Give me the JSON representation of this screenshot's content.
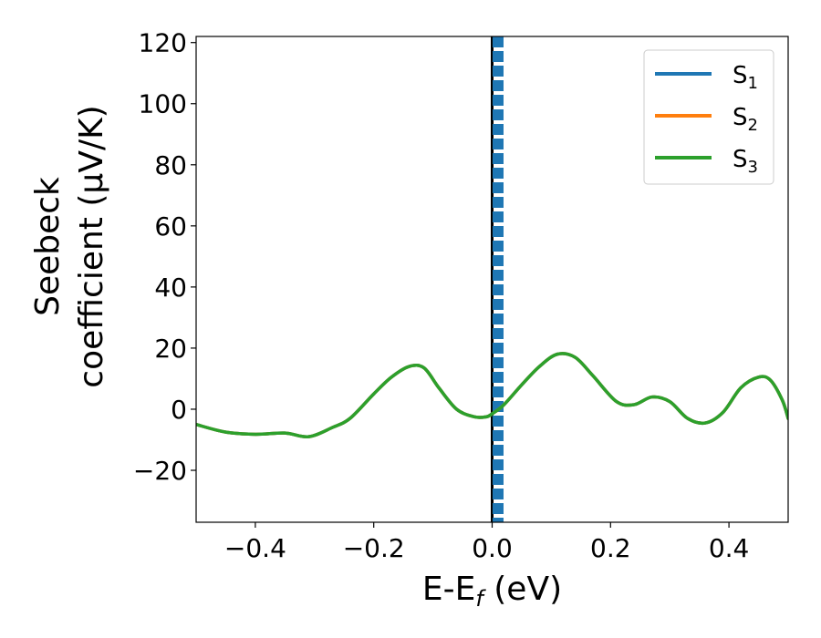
{
  "chart_data": {
    "type": "line",
    "xlabel": "E-E",
    "xlabel_sub": "f",
    "xlabel_unit": " (eV)",
    "ylabel_line1": "Seebeck",
    "ylabel_line2": "coefficient  (μV/K)",
    "xlim": [
      -0.5,
      0.5
    ],
    "ylim": [
      -37,
      122
    ],
    "xticks": [
      -0.4,
      -0.2,
      0.0,
      0.2,
      0.4
    ],
    "xtick_labels": [
      "−0.4",
      "−0.2",
      "0.0",
      "0.2",
      "0.4"
    ],
    "yticks": [
      -20,
      0,
      20,
      40,
      60,
      80,
      100,
      120
    ],
    "ytick_labels": [
      "−20",
      "0",
      "20",
      "40",
      "60",
      "80",
      "100",
      "120"
    ],
    "grid": false,
    "legend_position": "top-right",
    "vertical_lines": [
      {
        "x": 0.0,
        "color": "#000000",
        "style": "solid"
      },
      {
        "x": 0.01,
        "color": "#1f77b4",
        "style": "dashed"
      }
    ],
    "series": [
      {
        "name": "S",
        "name_sub": "1",
        "color": "#1f77b4",
        "x": [
          -0.5,
          -0.45,
          -0.4,
          -0.35,
          -0.31,
          -0.27,
          -0.24,
          -0.2,
          -0.17,
          -0.14,
          -0.115,
          -0.09,
          -0.06,
          -0.03,
          -0.01,
          0.0,
          0.02,
          0.05,
          0.08,
          0.11,
          0.14,
          0.17,
          0.21,
          0.24,
          0.27,
          0.3,
          0.33,
          0.36,
          0.39,
          0.42,
          0.45,
          0.47,
          0.49,
          0.5
        ],
        "values": [
          -5,
          -7.5,
          -8.2,
          -7.8,
          -9,
          -6,
          -3,
          5,
          10.5,
          14,
          13.5,
          7,
          0,
          -2.5,
          -2.5,
          -1.5,
          1.5,
          8,
          14,
          18,
          17,
          11,
          2.5,
          1.5,
          4,
          2.5,
          -3,
          -4.5,
          -1,
          7,
          10.5,
          9.5,
          3,
          -3
        ]
      },
      {
        "name": "S",
        "name_sub": "2",
        "color": "#ff7f0e",
        "x": [
          -0.5,
          -0.45,
          -0.4,
          -0.35,
          -0.31,
          -0.27,
          -0.24,
          -0.2,
          -0.17,
          -0.14,
          -0.115,
          -0.09,
          -0.06,
          -0.03,
          -0.01,
          0.0,
          0.02,
          0.05,
          0.08,
          0.11,
          0.14,
          0.17,
          0.21,
          0.24,
          0.27,
          0.3,
          0.33,
          0.36,
          0.39,
          0.42,
          0.45,
          0.47,
          0.49,
          0.5
        ],
        "values": [
          -5,
          -7.5,
          -8.2,
          -7.8,
          -9,
          -6,
          -3,
          5,
          10.5,
          14,
          13.5,
          7,
          0,
          -2.5,
          -2.5,
          -1.5,
          1.5,
          8,
          14,
          18,
          17,
          11,
          2.5,
          1.5,
          4,
          2.5,
          -3,
          -4.5,
          -1,
          7,
          10.5,
          9.5,
          3,
          -3
        ]
      },
      {
        "name": "S",
        "name_sub": "3",
        "color": "#2ca02c",
        "x": [
          -0.5,
          -0.45,
          -0.4,
          -0.35,
          -0.31,
          -0.27,
          -0.24,
          -0.2,
          -0.17,
          -0.14,
          -0.115,
          -0.09,
          -0.06,
          -0.03,
          -0.01,
          0.0,
          0.02,
          0.05,
          0.08,
          0.11,
          0.14,
          0.17,
          0.21,
          0.24,
          0.27,
          0.3,
          0.33,
          0.36,
          0.39,
          0.42,
          0.45,
          0.47,
          0.49,
          0.5
        ],
        "values": [
          -5,
          -7.5,
          -8.2,
          -7.8,
          -9,
          -6,
          -3,
          5,
          10.5,
          14,
          13.5,
          7,
          0,
          -2.5,
          -2.5,
          -1.5,
          1.5,
          8,
          14,
          18,
          17,
          11,
          2.5,
          1.5,
          4,
          2.5,
          -3,
          -4.5,
          -1,
          7,
          10.5,
          9.5,
          3,
          -3
        ]
      }
    ]
  }
}
